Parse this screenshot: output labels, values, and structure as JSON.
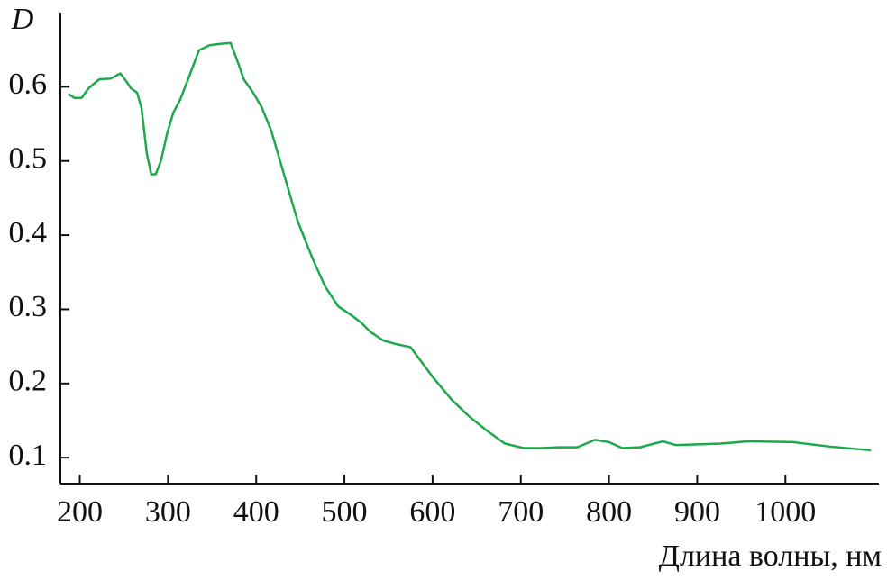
{
  "chart_data": {
    "type": "line",
    "x_label": "Длина волны, нм",
    "y_label": "D",
    "x": [
      187,
      194,
      202,
      210,
      222,
      235,
      246,
      253,
      258,
      265,
      270,
      276,
      281,
      286,
      292,
      299,
      306,
      314,
      325,
      335,
      347,
      360,
      371,
      378,
      386,
      396,
      406,
      417,
      432,
      447,
      463,
      478,
      493,
      508,
      519,
      529,
      544,
      559,
      575,
      585,
      600,
      621,
      641,
      662,
      682,
      703,
      723,
      743,
      764,
      784,
      800,
      815,
      835,
      861,
      876,
      927,
      958,
      1009,
      1050,
      1097
    ],
    "series": [
      {
        "name": "D",
        "color": "#1ea84c",
        "values": [
          0.59,
          0.585,
          0.585,
          0.598,
          0.61,
          0.611,
          0.618,
          0.607,
          0.598,
          0.592,
          0.571,
          0.51,
          0.482,
          0.482,
          0.5,
          0.537,
          0.565,
          0.583,
          0.617,
          0.649,
          0.656,
          0.658,
          0.659,
          0.637,
          0.61,
          0.593,
          0.573,
          0.541,
          0.48,
          0.419,
          0.371,
          0.331,
          0.304,
          0.292,
          0.282,
          0.27,
          0.258,
          0.253,
          0.249,
          0.233,
          0.209,
          0.179,
          0.156,
          0.136,
          0.119,
          0.113,
          0.113,
          0.114,
          0.114,
          0.124,
          0.121,
          0.113,
          0.114,
          0.122,
          0.117,
          0.119,
          0.122,
          0.121,
          0.115,
          0.11
        ]
      }
    ],
    "xlim": [
      178,
      1106
    ],
    "ylim": [
      0.065,
      0.7
    ],
    "xticks": [
      200,
      300,
      400,
      500,
      600,
      700,
      800,
      900,
      1000
    ],
    "yticks": [
      0.1,
      0.2,
      0.3,
      0.4,
      0.5,
      0.6
    ]
  }
}
